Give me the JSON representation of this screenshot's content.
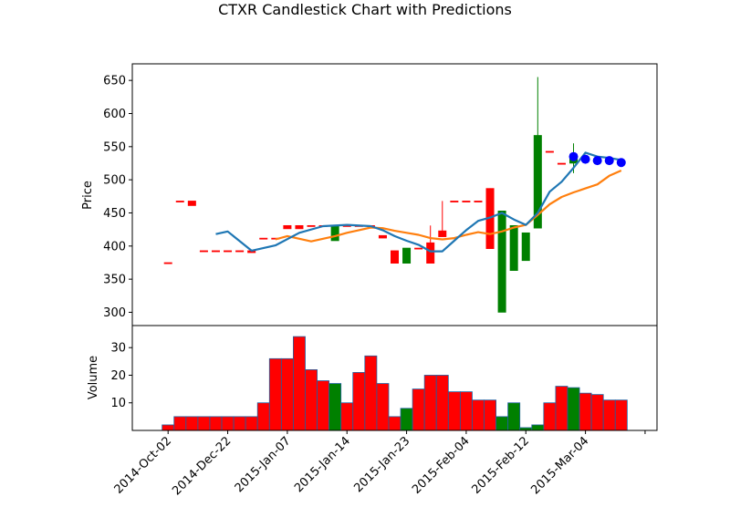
{
  "chart_data": {
    "type": "candlestick",
    "title": "CTXR Candlestick Chart with Predictions",
    "price_panel": {
      "ylabel": "Price",
      "ylim": [
        280,
        675
      ],
      "yticks": [
        300,
        350,
        400,
        450,
        500,
        550,
        600,
        650
      ]
    },
    "volume_panel": {
      "ylabel": "Volume",
      "ylim": [
        0,
        38
      ],
      "yticks": [
        10,
        20,
        30
      ]
    },
    "x_labels": [
      "2014-Oct-02",
      "2014-Dec-22",
      "2015-Jan-07",
      "2015-Jan-14",
      "2015-Jan-23",
      "2015-Feb-04",
      "2015-Feb-12",
      "2015-Mar-04"
    ],
    "xlim": [
      -3,
      41
    ],
    "candles": [
      {
        "open": 375,
        "high": 375,
        "low": 375,
        "close": 375,
        "volume": 2
      },
      {
        "open": 468,
        "high": 468,
        "low": 468,
        "close": 468,
        "volume": 5
      },
      {
        "open": 468,
        "high": 468,
        "low": 461,
        "close": 461,
        "volume": 5
      },
      {
        "open": 393,
        "high": 393,
        "low": 393,
        "close": 393,
        "volume": 5
      },
      {
        "open": 393,
        "high": 393,
        "low": 393,
        "close": 393,
        "volume": 5
      },
      {
        "open": 393,
        "high": 393,
        "low": 393,
        "close": 393,
        "volume": 5
      },
      {
        "open": 393,
        "high": 393,
        "low": 393,
        "close": 393,
        "volume": 5
      },
      {
        "open": 393,
        "high": 393,
        "low": 390,
        "close": 390,
        "volume": 5
      },
      {
        "open": 412,
        "high": 412,
        "low": 412,
        "close": 412,
        "volume": 10
      },
      {
        "open": 412,
        "high": 412,
        "low": 412,
        "close": 412,
        "volume": 26
      },
      {
        "open": 431,
        "high": 431,
        "low": 426,
        "close": 426,
        "volume": 26
      },
      {
        "open": 431,
        "high": 431,
        "low": 426,
        "close": 426,
        "volume": 34
      },
      {
        "open": 431,
        "high": 431,
        "low": 431,
        "close": 431,
        "volume": 22
      },
      {
        "open": 431,
        "high": 431,
        "low": 431,
        "close": 431,
        "volume": 18
      },
      {
        "open": 408,
        "high": 431,
        "low": 408,
        "close": 431,
        "volume": 17
      },
      {
        "open": 431,
        "high": 431,
        "low": 431,
        "close": 431,
        "volume": 10
      },
      {
        "open": 431,
        "high": 431,
        "low": 431,
        "close": 431,
        "volume": 21
      },
      {
        "open": 431,
        "high": 431,
        "low": 431,
        "close": 431,
        "volume": 27
      },
      {
        "open": 416,
        "high": 416,
        "low": 412,
        "close": 412,
        "volume": 17
      },
      {
        "open": 393,
        "high": 393,
        "low": 374,
        "close": 374,
        "volume": 5
      },
      {
        "open": 374,
        "high": 397,
        "low": 374,
        "close": 397,
        "volume": 8
      },
      {
        "open": 397,
        "high": 397,
        "low": 397,
        "close": 397,
        "volume": 15
      },
      {
        "open": 405,
        "high": 431,
        "low": 374,
        "close": 374,
        "volume": 20
      },
      {
        "open": 423,
        "high": 468,
        "low": 414,
        "close": 414,
        "volume": 20
      },
      {
        "open": 468,
        "high": 468,
        "low": 468,
        "close": 468,
        "volume": 14
      },
      {
        "open": 468,
        "high": 468,
        "low": 468,
        "close": 468,
        "volume": 14
      },
      {
        "open": 468,
        "high": 468,
        "low": 468,
        "close": 468,
        "volume": 11
      },
      {
        "open": 487,
        "high": 487,
        "low": 396,
        "close": 396,
        "volume": 11
      },
      {
        "open": 300,
        "high": 453,
        "low": 300,
        "close": 453,
        "volume": 5
      },
      {
        "open": 363,
        "high": 431,
        "low": 363,
        "close": 431,
        "volume": 10
      },
      {
        "open": 378,
        "high": 420,
        "low": 378,
        "close": 420,
        "volume": 1
      },
      {
        "open": 427,
        "high": 655,
        "low": 427,
        "close": 567,
        "volume": 2
      },
      {
        "open": 543,
        "high": 543,
        "low": 543,
        "close": 543,
        "volume": 10
      },
      {
        "open": 525,
        "high": 525,
        "low": 525,
        "close": 525,
        "volume": 16
      },
      {
        "open": 525,
        "high": 555,
        "low": 510,
        "close": 533,
        "volume": 15.5
      },
      {
        "open": null,
        "high": null,
        "low": null,
        "close": null,
        "volume": 13.5
      },
      {
        "open": null,
        "high": null,
        "low": null,
        "close": null,
        "volume": 13
      },
      {
        "open": null,
        "high": null,
        "low": null,
        "close": null,
        "volume": 11
      },
      {
        "open": null,
        "high": null,
        "low": null,
        "close": null,
        "volume": 11
      }
    ],
    "moving_average_short": {
      "color": "#1f77b4",
      "x": [
        4,
        5,
        7,
        9,
        11,
        13,
        15,
        17,
        18,
        19,
        20,
        21,
        22,
        23,
        24,
        25,
        26,
        27,
        28,
        29,
        30,
        31,
        32,
        33,
        34,
        35,
        36,
        37,
        38
      ],
      "y": [
        418,
        422,
        393,
        401,
        420,
        430,
        432,
        430,
        424,
        415,
        408,
        402,
        392,
        392,
        408,
        424,
        438,
        443,
        450,
        440,
        432,
        450,
        482,
        497,
        518,
        541,
        535,
        533,
        530
      ]
    },
    "moving_average_long": {
      "color": "#ff7f0e",
      "x": [
        9,
        10,
        11,
        12,
        13,
        14,
        15,
        16,
        17,
        18,
        19,
        20,
        21,
        22,
        23,
        24,
        25,
        26,
        27,
        28,
        29,
        30,
        31,
        32,
        33,
        34,
        35,
        36,
        37,
        38
      ],
      "y": [
        410,
        415,
        411,
        407,
        411,
        415,
        420,
        424,
        428,
        427,
        423,
        420,
        417,
        412,
        410,
        412,
        417,
        421,
        418,
        422,
        428,
        432,
        447,
        463,
        474,
        481,
        487,
        493,
        506,
        514
      ]
    },
    "predictions": {
      "color": "#0000ff",
      "x": [
        34,
        35,
        36,
        37,
        38
      ],
      "y": [
        535,
        531,
        529,
        529,
        526
      ]
    },
    "bull_color": "#008000",
    "bear_color": "#ff0000"
  }
}
